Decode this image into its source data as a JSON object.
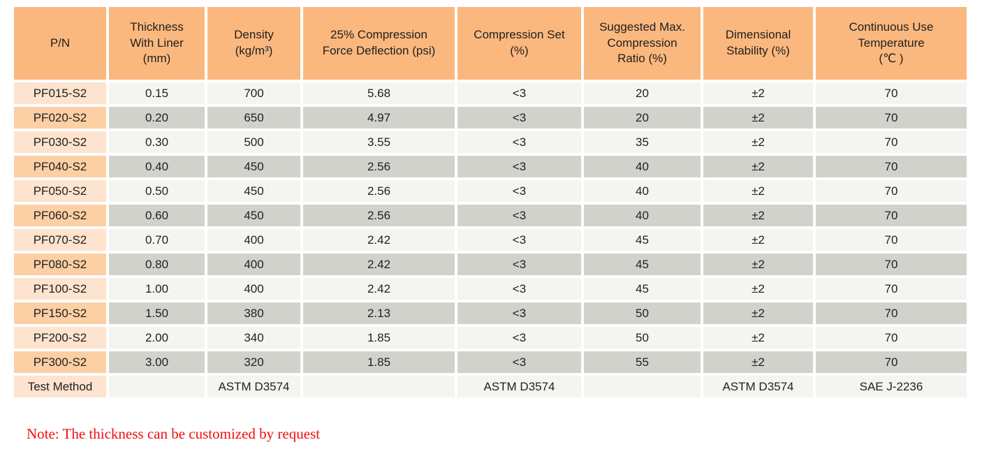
{
  "colors": {
    "header_bg": "#FBB87E",
    "pn_light": "#FEE3CE",
    "pn_dark": "#FCCFA4",
    "cell_light": "#F4F4F0",
    "cell_dark": "#D2D2CC",
    "text": "#1F1F1F",
    "note": "#F20D0D",
    "page_bg": "#FFFFFF"
  },
  "table": {
    "columns": [
      {
        "label": "P/N"
      },
      {
        "label": "Thickness\nWith Liner\n(mm)"
      },
      {
        "label": "Density\n(kg/m³)"
      },
      {
        "label": "25% Compression\nForce Deflection (psi)"
      },
      {
        "label": "Compression Set\n(%)"
      },
      {
        "label": "Suggested Max.\nCompression\nRatio (%)"
      },
      {
        "label": "Dimensional\nStability (%)"
      },
      {
        "label": "Continuous Use\nTemperature\n(℃ )"
      }
    ],
    "rows": [
      {
        "pn": "PF015-S2",
        "values": [
          "0.15",
          "700",
          "5.68",
          "<3",
          "20",
          "±2",
          "70"
        ]
      },
      {
        "pn": "PF020-S2",
        "values": [
          "0.20",
          "650",
          "4.97",
          "<3",
          "20",
          "±2",
          "70"
        ]
      },
      {
        "pn": "PF030-S2",
        "values": [
          "0.30",
          "500",
          "3.55",
          "<3",
          "35",
          "±2",
          "70"
        ]
      },
      {
        "pn": "PF040-S2",
        "values": [
          "0.40",
          "450",
          "2.56",
          "<3",
          "40",
          "±2",
          "70"
        ]
      },
      {
        "pn": "PF050-S2",
        "values": [
          "0.50",
          "450",
          "2.56",
          "<3",
          "40",
          "±2",
          "70"
        ]
      },
      {
        "pn": "PF060-S2",
        "values": [
          "0.60",
          "450",
          "2.56",
          "<3",
          "40",
          "±2",
          "70"
        ]
      },
      {
        "pn": "PF070-S2",
        "values": [
          "0.70",
          "400",
          "2.42",
          "<3",
          "45",
          "±2",
          "70"
        ]
      },
      {
        "pn": "PF080-S2",
        "values": [
          "0.80",
          "400",
          "2.42",
          "<3",
          "45",
          "±2",
          "70"
        ]
      },
      {
        "pn": "PF100-S2",
        "values": [
          "1.00",
          "400",
          "2.42",
          "<3",
          "45",
          "±2",
          "70"
        ]
      },
      {
        "pn": "PF150-S2",
        "values": [
          "1.50",
          "380",
          "2.13",
          "<3",
          "50",
          "±2",
          "70"
        ]
      },
      {
        "pn": "PF200-S2",
        "values": [
          "2.00",
          "340",
          "1.85",
          "<3",
          "50",
          "±2",
          "70"
        ]
      },
      {
        "pn": "PF300-S2",
        "values": [
          "3.00",
          "320",
          "1.85",
          "<3",
          "55",
          "±2",
          "70"
        ]
      }
    ],
    "test_method": {
      "label": "Test Method",
      "values": [
        "",
        "ASTM D3574",
        "",
        "ASTM D3574",
        "",
        "ASTM D3574",
        "SAE J-2236"
      ]
    }
  },
  "note": {
    "text": "Note: The thickness can be customized by request"
  }
}
